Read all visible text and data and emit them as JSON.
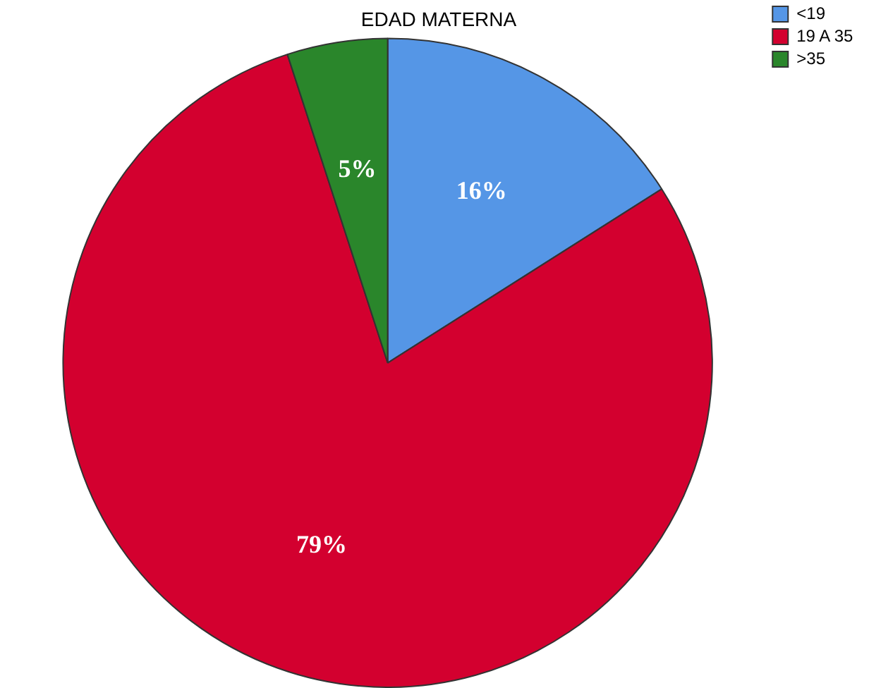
{
  "chart_data": {
    "type": "pie",
    "title": "EDAD MATERNA",
    "categories": [
      "<19",
      "19 A 35",
      ">35"
    ],
    "values": [
      16,
      79,
      5
    ],
    "colors": [
      "#5596e6",
      "#d3002f",
      "#2a862b"
    ],
    "value_labels": [
      "16%",
      "79%",
      "5%"
    ],
    "legend": "top right"
  }
}
